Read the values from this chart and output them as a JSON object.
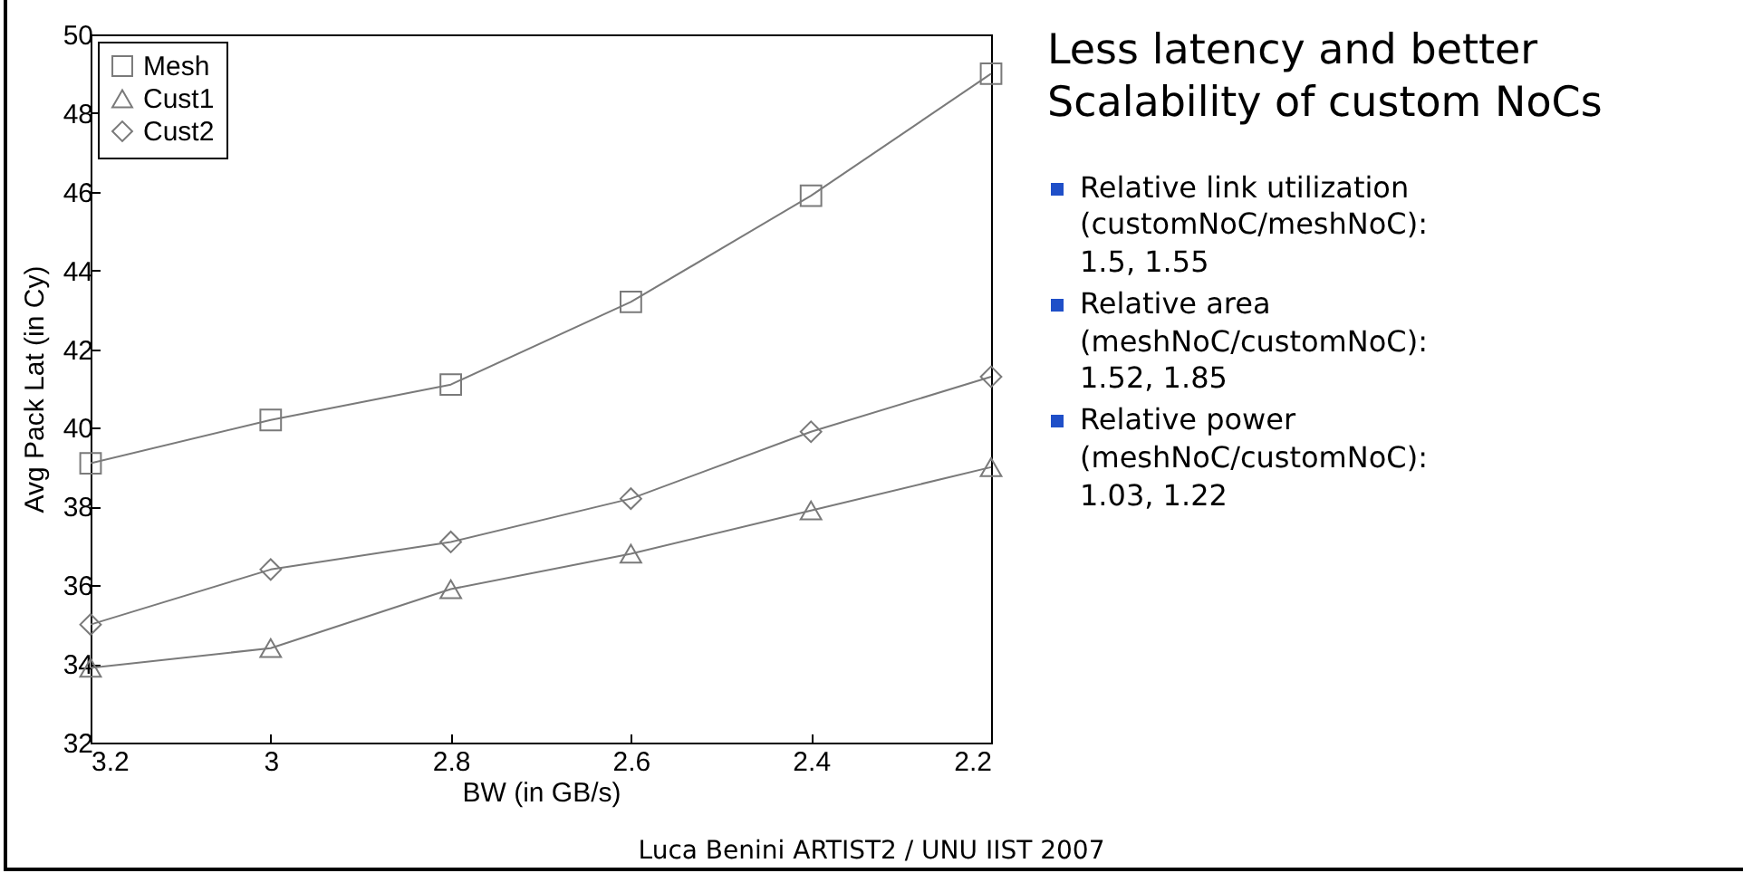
{
  "chart_data": {
    "type": "line",
    "xlabel": "BW (in GB/s)",
    "ylabel": "Avg Pack Lat (in Cy)",
    "x": [
      3.2,
      3.0,
      2.8,
      2.6,
      2.4,
      2.2
    ],
    "xlim": [
      3.2,
      2.2
    ],
    "xticks": [
      3.2,
      3,
      2.8,
      2.6,
      2.4,
      2.2
    ],
    "ylim": [
      32,
      50
    ],
    "yticks": [
      32,
      34,
      36,
      38,
      40,
      42,
      44,
      46,
      48,
      50
    ],
    "legend": "top left",
    "line_style": "solid",
    "series": [
      {
        "name": "Mesh",
        "color": "#7a7a7a",
        "marker": "square",
        "values": [
          39.1,
          40.2,
          41.1,
          43.2,
          45.9,
          49.0
        ]
      },
      {
        "name": "Cust1",
        "color": "#7a7a7a",
        "marker": "triangle",
        "values": [
          33.9,
          34.4,
          35.9,
          36.8,
          37.9,
          39.0
        ]
      },
      {
        "name": "Cust2",
        "color": "#7a7a7a",
        "marker": "diamond",
        "values": [
          35.0,
          36.4,
          37.1,
          38.2,
          39.9,
          41.3
        ]
      }
    ],
    "annotations": [
      "Less latency and better Scalability of custom NoCs",
      "Relative link utilization (customNoC/meshNoC): 1.5, 1.55",
      "Relative area (meshNoC/customNoC): 1.52, 1.85",
      "Relative power (meshNoC/customNoC): 1.03, 1.22",
      "Luca Benini ARTIST2 / UNU IIST 2007"
    ]
  }
}
